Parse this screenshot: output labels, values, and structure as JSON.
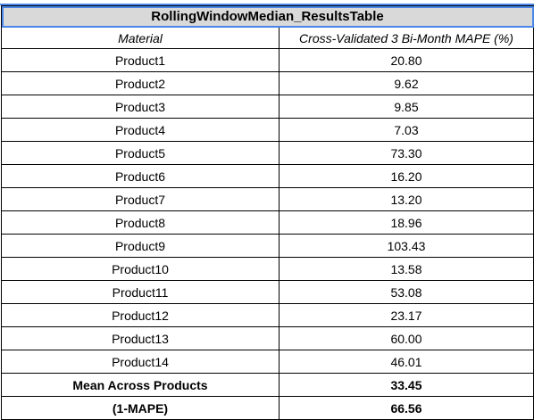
{
  "table": {
    "title": "RollingWindowMedian_ResultsTable",
    "headers": [
      "Material",
      "Cross-Validated 3 Bi-Month MAPE (%)"
    ],
    "rows": [
      {
        "material": "Product1",
        "mape": "20.80"
      },
      {
        "material": "Product2",
        "mape": "9.62"
      },
      {
        "material": "Product3",
        "mape": "9.85"
      },
      {
        "material": "Product4",
        "mape": "7.03"
      },
      {
        "material": "Product5",
        "mape": "73.30"
      },
      {
        "material": "Product6",
        "mape": "16.20"
      },
      {
        "material": "Product7",
        "mape": "13.20"
      },
      {
        "material": "Product8",
        "mape": "18.96"
      },
      {
        "material": "Product9",
        "mape": "103.43"
      },
      {
        "material": "Product10",
        "mape": "13.58"
      },
      {
        "material": "Product11",
        "mape": "53.08"
      },
      {
        "material": "Product12",
        "mape": "23.17"
      },
      {
        "material": "Product13",
        "mape": "60.00"
      },
      {
        "material": "Product14",
        "mape": "46.01"
      }
    ],
    "summary": [
      {
        "label": "Mean Across Products",
        "value": "33.45"
      },
      {
        "label": "(1-MAPE)",
        "value": "66.56"
      }
    ]
  },
  "colors": {
    "title_background": "#d9d9d9",
    "selection_border": "#4a86e8",
    "grid_border": "#000000"
  }
}
